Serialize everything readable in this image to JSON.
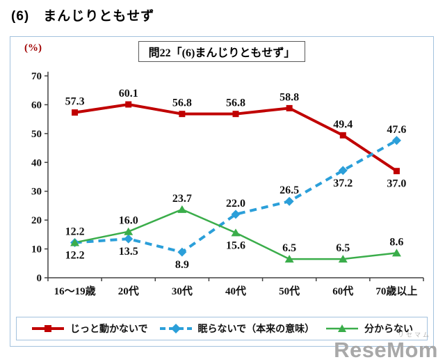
{
  "page": {
    "heading": "(6)　まんじりともせず"
  },
  "chart": {
    "percent_label": "(%)",
    "title": "問22「(6)まんじりともせず」",
    "watermark": {
      "main": "ReseMom",
      "small": "リセマム"
    }
  },
  "chart_data": {
    "type": "line",
    "title": "問22「(6)まんじりともせず」",
    "categories": [
      "16〜19歳",
      "20代",
      "30代",
      "40代",
      "50代",
      "60代",
      "70歳以上"
    ],
    "ylim": [
      0,
      70
    ],
    "yticks": [
      0,
      10,
      20,
      30,
      40,
      50,
      60,
      70
    ],
    "ylabel": "(%)",
    "grid": false,
    "legend_position": "bottom",
    "series": [
      {
        "name": "じっと動かないで",
        "color": "#c00000",
        "marker": "square",
        "dash": "solid",
        "values": [
          57.3,
          60.1,
          56.8,
          56.8,
          58.8,
          49.4,
          37.0
        ],
        "label_pos": [
          "above",
          "above",
          "above",
          "above",
          "above",
          "above",
          "below"
        ]
      },
      {
        "name": "眠らないで（本来の意味）",
        "color": "#2b9fd9",
        "marker": "diamond",
        "dash": "dashed",
        "values": [
          12.2,
          13.5,
          8.9,
          22.0,
          26.5,
          37.2,
          47.6
        ],
        "label_pos": [
          "below",
          "below",
          "below",
          "above",
          "above",
          "below",
          "above"
        ]
      },
      {
        "name": "分からない",
        "color": "#3aad4a",
        "marker": "triangle",
        "dash": "solid",
        "values": [
          12.2,
          16.0,
          23.7,
          15.6,
          6.5,
          6.5,
          8.6
        ],
        "label_pos": [
          "above",
          "above",
          "above",
          "below",
          "above",
          "above",
          "above"
        ]
      }
    ]
  }
}
